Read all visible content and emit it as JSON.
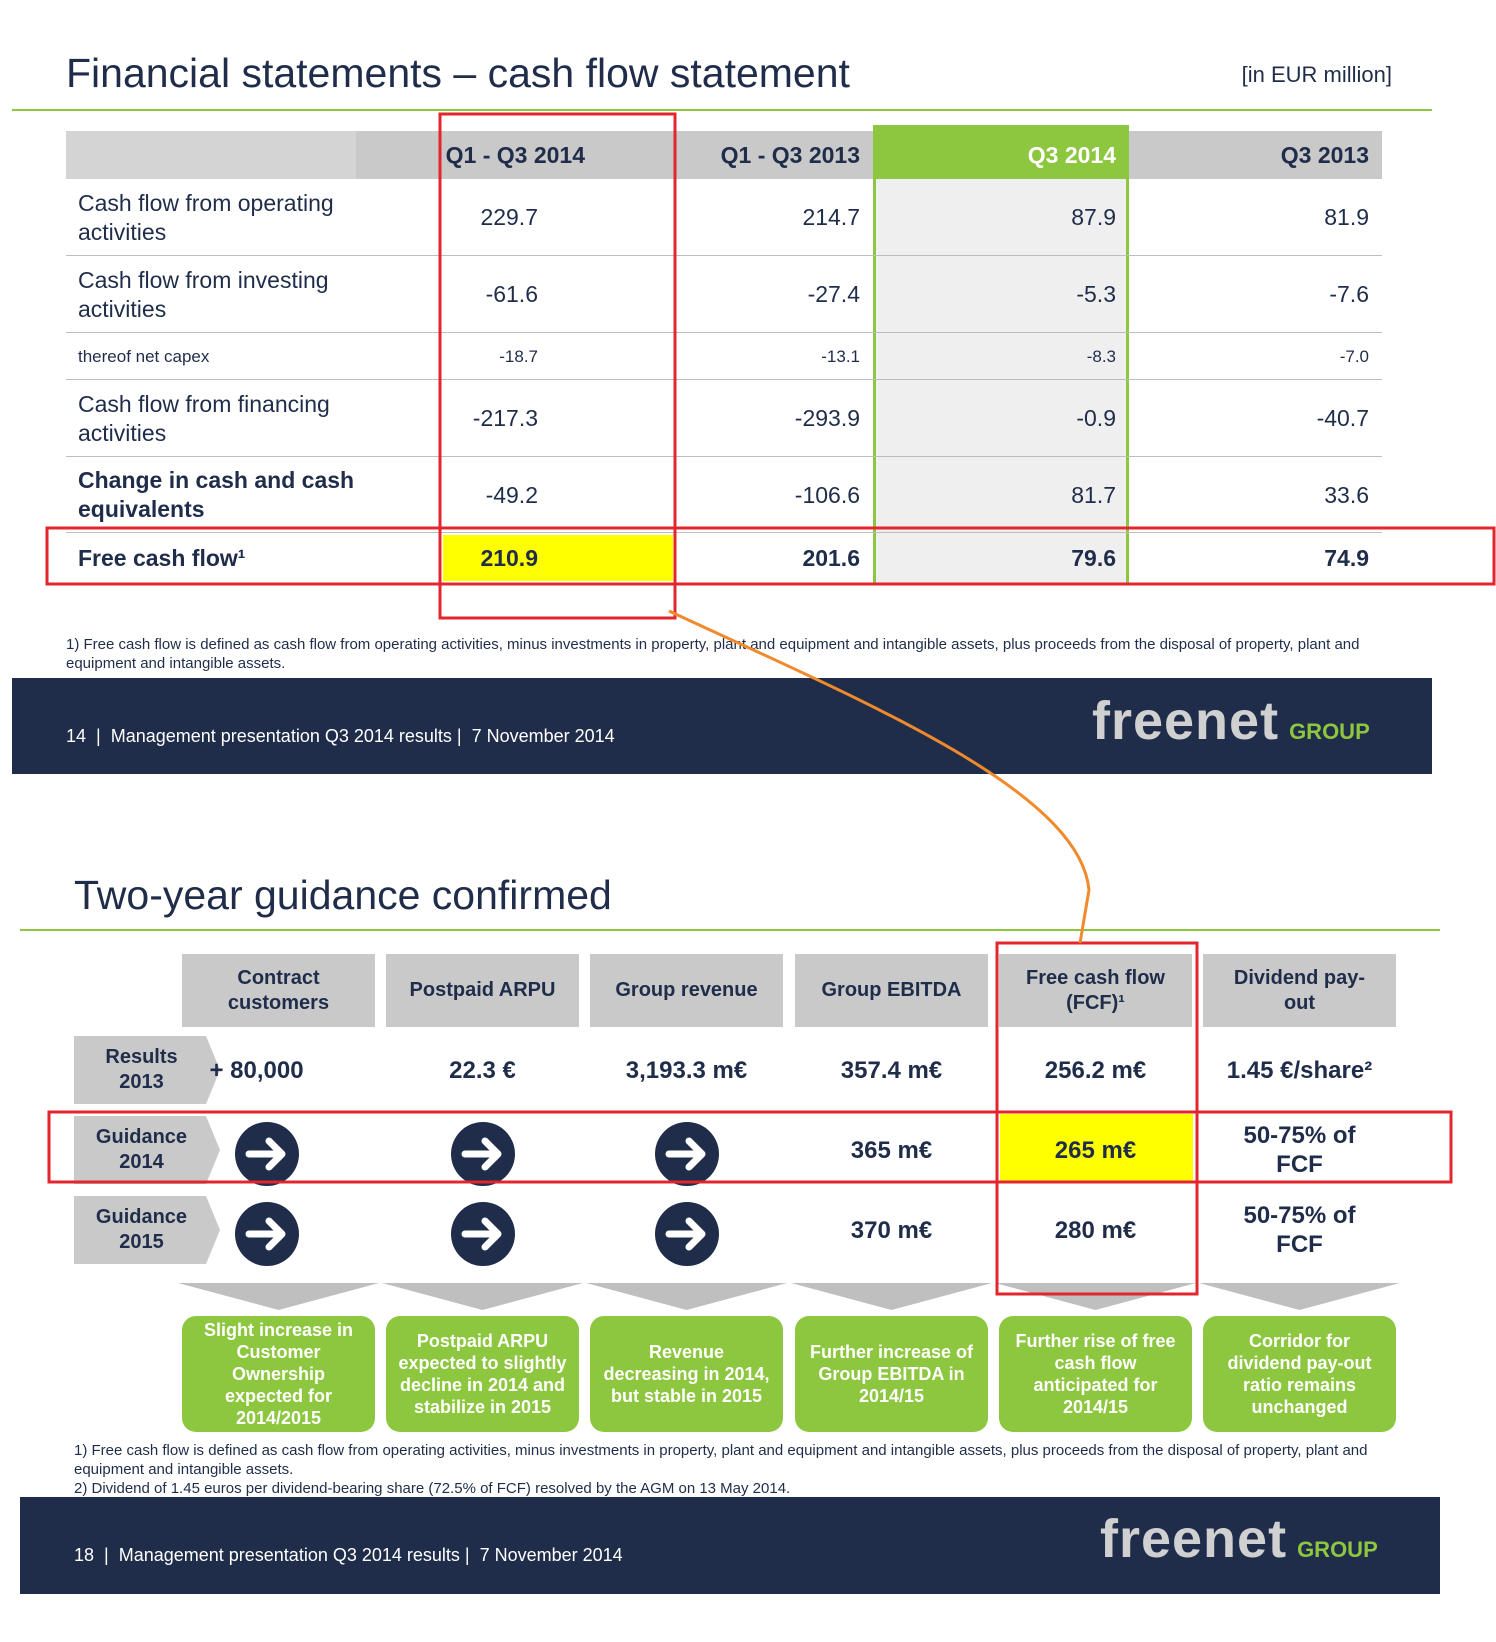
{
  "slide1": {
    "title": "Financial statements – cash flow statement",
    "unit": "[in EUR million]",
    "table": {
      "columns": [
        "Q1 - Q3 2014",
        "Q1 - Q3 2013",
        "Q3 2014",
        "Q3 2013"
      ],
      "rows": [
        {
          "label": "Cash flow from operating activities",
          "values": [
            "229.7",
            "214.7",
            "87.9",
            "81.9"
          ]
        },
        {
          "label": "Cash flow from investing activities",
          "values": [
            "-61.6",
            "-27.4",
            "-5.3",
            "-7.6"
          ]
        },
        {
          "label": "thereof net capex",
          "values": [
            "-18.7",
            "-13.1",
            "-8.3",
            "-7.0"
          ]
        },
        {
          "label": "Cash flow from financing activities",
          "values": [
            "-217.3",
            "-293.9",
            "-0.9",
            "-40.7"
          ]
        },
        {
          "label": "Change in cash and cash equivalents",
          "values": [
            "-49.2",
            "-106.6",
            "81.7",
            "33.6"
          ]
        },
        {
          "label": "Free cash flow¹",
          "values": [
            "210.9",
            "201.6",
            "79.6",
            "74.9"
          ]
        }
      ]
    },
    "footnote": "1) Free cash flow is defined as cash flow from operating activities, minus investments in property, plant and equipment and intangible assets, plus proceeds from the disposal of property,  plant and equipment and intangible assets.",
    "footer": "14  |  Management presentation Q3 2014 results |  7 November 2014",
    "logo": {
      "name": "freenet",
      "group": "GROUP"
    }
  },
  "slide2": {
    "title": "Two-year guidance confirmed",
    "columns": [
      "Contract customers",
      "Postpaid ARPU",
      "Group revenue",
      "Group EBITDA",
      "Free cash flow (FCF)¹",
      "Dividend pay-out"
    ],
    "rows": [
      {
        "label": "Results 2013",
        "cells": [
          "+ 80,000",
          "22.3 €",
          "3,193.3 m€",
          "357.4 m€",
          "256.2 m€",
          "1.45 €/share²"
        ]
      },
      {
        "label": "Guidance 2014",
        "cells": [
          null,
          null,
          null,
          "365 m€",
          "265 m€",
          "50-75% of FCF"
        ]
      },
      {
        "label": "Guidance 2015",
        "cells": [
          null,
          null,
          null,
          "370 m€",
          "280 m€",
          "50-75% of FCF"
        ]
      }
    ],
    "notes": [
      "Slight increase in Customer Ownership expected for 2014/2015",
      "Postpaid ARPU expected to slightly decline in 2014 and stabilize in 2015",
      "Revenue decreasing in 2014, but stable in 2015",
      "Further increase of Group EBITDA in 2014/15",
      "Further rise of free cash flow anticipated for 2014/15",
      "Corridor for dividend pay-out ratio remains unchanged"
    ],
    "footnotes": [
      "1) Free cash flow is defined as cash flow from operating activities, minus investments in property, plant and equipment and intangible assets, plus proceeds from the disposal of property, plant and equipment and intangible assets.",
      "2) Dividend of 1.45 euros per dividend-bearing share (72.5% of FCF) resolved by the AGM on 13 May 2014."
    ],
    "footer": "18  |  Management presentation Q3 2014 results |  7 November 2014",
    "logo": {
      "name": "freenet",
      "group": "GROUP"
    }
  }
}
